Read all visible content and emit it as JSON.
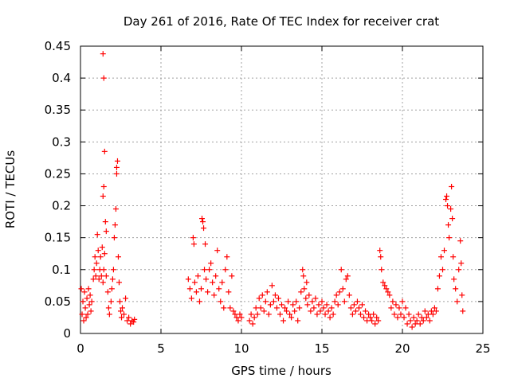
{
  "chart_data": {
    "type": "scatter",
    "title": "Day 261 of 2016, Rate Of TEC Index for receiver crat",
    "xlabel": "GPS time / hours",
    "ylabel": "ROTI / TECUs",
    "xlim": [
      0,
      25
    ],
    "ylim": [
      0,
      0.45
    ],
    "xticks": [
      0,
      5,
      10,
      15,
      20,
      25
    ],
    "xtick_labels": [
      "0",
      "5",
      "10",
      "15",
      "20",
      "25"
    ],
    "yticks": [
      0,
      0.05,
      0.1,
      0.15,
      0.2,
      0.25,
      0.3,
      0.35,
      0.4,
      0.45
    ],
    "ytick_labels": [
      "0",
      "0.05",
      "0.1",
      "0.15",
      "0.2",
      "0.25",
      "0.3",
      "0.35",
      "0.4",
      "0.45"
    ],
    "grid": true,
    "marker": "+",
    "marker_color": "#ff0000",
    "series": [
      {
        "name": "ROTI",
        "points": [
          [
            0.05,
            0.07
          ],
          [
            0.1,
            0.03
          ],
          [
            0.15,
            0.05
          ],
          [
            0.2,
            0.02
          ],
          [
            0.25,
            0.065
          ],
          [
            0.3,
            0.04
          ],
          [
            0.35,
            0.025
          ],
          [
            0.4,
            0.055
          ],
          [
            0.45,
            0.03
          ],
          [
            0.5,
            0.07
          ],
          [
            0.55,
            0.045
          ],
          [
            0.6,
            0.06
          ],
          [
            0.65,
            0.035
          ],
          [
            0.7,
            0.05
          ],
          [
            0.8,
            0.085
          ],
          [
            0.85,
            0.1
          ],
          [
            0.9,
            0.12
          ],
          [
            0.95,
            0.09
          ],
          [
            1.0,
            0.11
          ],
          [
            1.05,
            0.155
          ],
          [
            1.1,
            0.13
          ],
          [
            1.15,
            0.085
          ],
          [
            1.2,
            0.1
          ],
          [
            1.25,
            0.12
          ],
          [
            1.3,
            0.09
          ],
          [
            1.35,
            0.135
          ],
          [
            1.4,
            0.08
          ],
          [
            1.45,
            0.1
          ],
          [
            1.4,
            0.438
          ],
          [
            1.45,
            0.4
          ],
          [
            1.5,
            0.285
          ],
          [
            1.45,
            0.23
          ],
          [
            1.4,
            0.215
          ],
          [
            1.55,
            0.175
          ],
          [
            1.6,
            0.16
          ],
          [
            1.5,
            0.125
          ],
          [
            1.6,
            0.09
          ],
          [
            1.7,
            0.065
          ],
          [
            1.75,
            0.04
          ],
          [
            1.8,
            0.03
          ],
          [
            1.9,
            0.05
          ],
          [
            1.95,
            0.07
          ],
          [
            2.0,
            0.085
          ],
          [
            2.05,
            0.1
          ],
          [
            2.1,
            0.15
          ],
          [
            2.15,
            0.17
          ],
          [
            2.2,
            0.195
          ],
          [
            2.25,
            0.26
          ],
          [
            2.3,
            0.27
          ],
          [
            2.25,
            0.25
          ],
          [
            2.35,
            0.12
          ],
          [
            2.4,
            0.08
          ],
          [
            2.45,
            0.05
          ],
          [
            2.5,
            0.035
          ],
          [
            2.55,
            0.025
          ],
          [
            2.6,
            0.04
          ],
          [
            2.7,
            0.03
          ],
          [
            2.8,
            0.055
          ],
          [
            2.9,
            0.02
          ],
          [
            3.0,
            0.025
          ],
          [
            3.1,
            0.015
          ],
          [
            3.2,
            0.02
          ],
          [
            3.3,
            0.018
          ],
          [
            3.35,
            0.022
          ],
          [
            6.7,
            0.085
          ],
          [
            6.8,
            0.07
          ],
          [
            6.9,
            0.055
          ],
          [
            7.0,
            0.15
          ],
          [
            7.05,
            0.14
          ],
          [
            7.1,
            0.08
          ],
          [
            7.2,
            0.065
          ],
          [
            7.3,
            0.09
          ],
          [
            7.4,
            0.05
          ],
          [
            7.5,
            0.07
          ],
          [
            7.55,
            0.18
          ],
          [
            7.6,
            0.175
          ],
          [
            7.65,
            0.165
          ],
          [
            7.7,
            0.1
          ],
          [
            7.75,
            0.14
          ],
          [
            7.8,
            0.085
          ],
          [
            7.9,
            0.065
          ],
          [
            8.0,
            0.1
          ],
          [
            8.1,
            0.11
          ],
          [
            8.2,
            0.08
          ],
          [
            8.3,
            0.06
          ],
          [
            8.4,
            0.09
          ],
          [
            8.5,
            0.13
          ],
          [
            8.6,
            0.07
          ],
          [
            8.7,
            0.05
          ],
          [
            8.8,
            0.08
          ],
          [
            8.9,
            0.04
          ],
          [
            9.0,
            0.1
          ],
          [
            9.1,
            0.12
          ],
          [
            9.2,
            0.065
          ],
          [
            9.3,
            0.04
          ],
          [
            9.4,
            0.09
          ],
          [
            9.5,
            0.035
          ],
          [
            9.6,
            0.03
          ],
          [
            9.7,
            0.025
          ],
          [
            9.8,
            0.02
          ],
          [
            9.9,
            0.03
          ],
          [
            10.0,
            0.025
          ],
          [
            10.5,
            0.02
          ],
          [
            10.6,
            0.03
          ],
          [
            10.7,
            0.015
          ],
          [
            10.8,
            0.025
          ],
          [
            10.9,
            0.04
          ],
          [
            11.0,
            0.03
          ],
          [
            11.1,
            0.055
          ],
          [
            11.2,
            0.04
          ],
          [
            11.3,
            0.06
          ],
          [
            11.4,
            0.035
          ],
          [
            11.5,
            0.05
          ],
          [
            11.6,
            0.065
          ],
          [
            11.7,
            0.03
          ],
          [
            11.8,
            0.045
          ],
          [
            11.9,
            0.075
          ],
          [
            12.0,
            0.05
          ],
          [
            12.1,
            0.06
          ],
          [
            12.2,
            0.04
          ],
          [
            12.3,
            0.055
          ],
          [
            12.4,
            0.03
          ],
          [
            12.5,
            0.045
          ],
          [
            12.6,
            0.02
          ],
          [
            12.7,
            0.04
          ],
          [
            12.8,
            0.035
          ],
          [
            12.9,
            0.05
          ],
          [
            13.0,
            0.03
          ],
          [
            13.1,
            0.025
          ],
          [
            13.2,
            0.045
          ],
          [
            13.3,
            0.035
          ],
          [
            13.4,
            0.05
          ],
          [
            13.5,
            0.02
          ],
          [
            13.6,
            0.04
          ],
          [
            13.7,
            0.065
          ],
          [
            13.8,
            0.1
          ],
          [
            13.85,
            0.09
          ],
          [
            13.9,
            0.07
          ],
          [
            14.0,
            0.055
          ],
          [
            14.05,
            0.08
          ],
          [
            14.1,
            0.045
          ],
          [
            14.2,
            0.06
          ],
          [
            14.3,
            0.035
          ],
          [
            14.4,
            0.05
          ],
          [
            14.5,
            0.04
          ],
          [
            14.6,
            0.055
          ],
          [
            14.7,
            0.03
          ],
          [
            14.8,
            0.045
          ],
          [
            14.9,
            0.035
          ],
          [
            15.0,
            0.05
          ],
          [
            15.1,
            0.04
          ],
          [
            15.2,
            0.03
          ],
          [
            15.3,
            0.045
          ],
          [
            15.4,
            0.035
          ],
          [
            15.5,
            0.025
          ],
          [
            15.6,
            0.04
          ],
          [
            15.7,
            0.03
          ],
          [
            15.8,
            0.05
          ],
          [
            15.9,
            0.06
          ],
          [
            16.0,
            0.045
          ],
          [
            16.1,
            0.065
          ],
          [
            16.2,
            0.1
          ],
          [
            16.3,
            0.07
          ],
          [
            16.4,
            0.05
          ],
          [
            16.5,
            0.085
          ],
          [
            16.6,
            0.09
          ],
          [
            16.7,
            0.06
          ],
          [
            16.8,
            0.04
          ],
          [
            16.9,
            0.03
          ],
          [
            17.0,
            0.045
          ],
          [
            17.1,
            0.035
          ],
          [
            17.2,
            0.05
          ],
          [
            17.3,
            0.04
          ],
          [
            17.4,
            0.03
          ],
          [
            17.5,
            0.045
          ],
          [
            17.6,
            0.025
          ],
          [
            17.7,
            0.035
          ],
          [
            17.8,
            0.02
          ],
          [
            17.9,
            0.03
          ],
          [
            18.0,
            0.025
          ],
          [
            18.1,
            0.02
          ],
          [
            18.2,
            0.03
          ],
          [
            18.3,
            0.015
          ],
          [
            18.4,
            0.025
          ],
          [
            18.5,
            0.02
          ],
          [
            18.6,
            0.13
          ],
          [
            18.65,
            0.12
          ],
          [
            18.7,
            0.1
          ],
          [
            18.8,
            0.08
          ],
          [
            18.9,
            0.075
          ],
          [
            19.0,
            0.07
          ],
          [
            19.1,
            0.065
          ],
          [
            19.2,
            0.06
          ],
          [
            19.3,
            0.04
          ],
          [
            19.4,
            0.05
          ],
          [
            19.5,
            0.03
          ],
          [
            19.6,
            0.045
          ],
          [
            19.7,
            0.025
          ],
          [
            19.8,
            0.04
          ],
          [
            19.9,
            0.03
          ],
          [
            20.0,
            0.05
          ],
          [
            20.1,
            0.025
          ],
          [
            20.2,
            0.04
          ],
          [
            20.3,
            0.015
          ],
          [
            20.4,
            0.03
          ],
          [
            20.5,
            0.02
          ],
          [
            20.6,
            0.01
          ],
          [
            20.7,
            0.025
          ],
          [
            20.8,
            0.015
          ],
          [
            20.9,
            0.02
          ],
          [
            21.0,
            0.03
          ],
          [
            21.1,
            0.015
          ],
          [
            21.2,
            0.025
          ],
          [
            21.3,
            0.02
          ],
          [
            21.4,
            0.035
          ],
          [
            21.5,
            0.025
          ],
          [
            21.6,
            0.03
          ],
          [
            21.7,
            0.02
          ],
          [
            21.8,
            0.035
          ],
          [
            21.9,
            0.03
          ],
          [
            22.0,
            0.04
          ],
          [
            22.1,
            0.035
          ],
          [
            22.2,
            0.07
          ],
          [
            22.3,
            0.09
          ],
          [
            22.4,
            0.12
          ],
          [
            22.5,
            0.1
          ],
          [
            22.6,
            0.13
          ],
          [
            22.7,
            0.21
          ],
          [
            22.75,
            0.215
          ],
          [
            22.8,
            0.2
          ],
          [
            22.85,
            0.17
          ],
          [
            22.9,
            0.15
          ],
          [
            23.0,
            0.195
          ],
          [
            23.05,
            0.23
          ],
          [
            23.1,
            0.18
          ],
          [
            23.15,
            0.12
          ],
          [
            23.2,
            0.085
          ],
          [
            23.3,
            0.07
          ],
          [
            23.4,
            0.05
          ],
          [
            23.5,
            0.1
          ],
          [
            23.6,
            0.145
          ],
          [
            23.65,
            0.11
          ],
          [
            23.7,
            0.06
          ],
          [
            23.75,
            0.035
          ]
        ]
      }
    ]
  }
}
